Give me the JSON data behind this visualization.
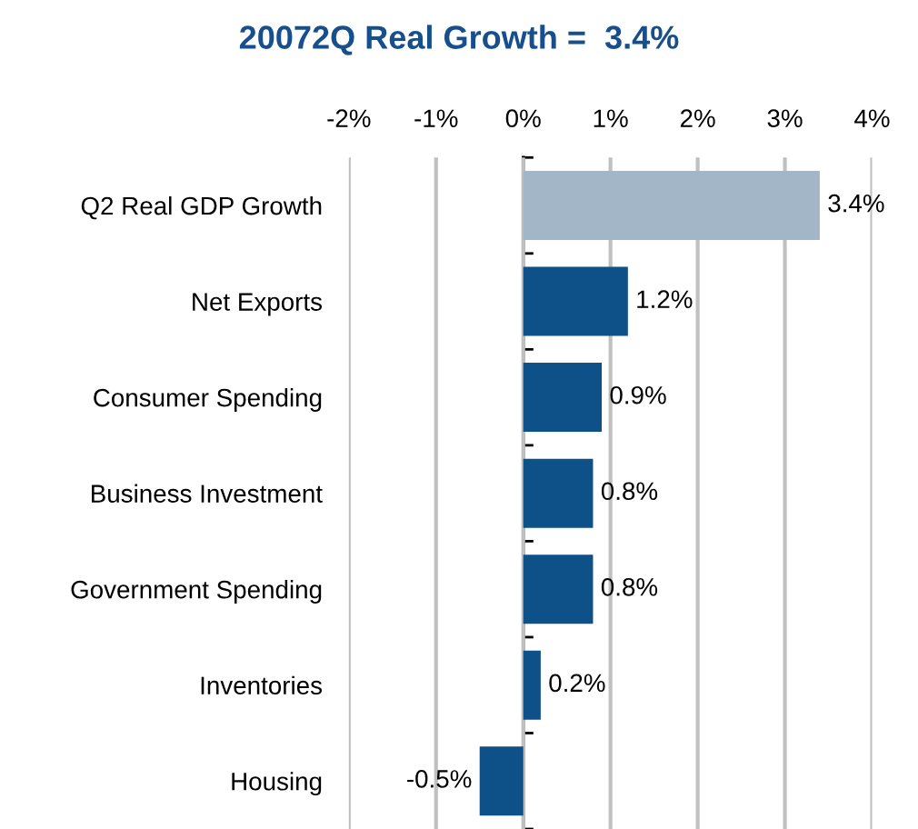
{
  "chart_data": {
    "type": "bar",
    "orientation": "horizontal",
    "title": "20072Q Real Growth =  3.4%",
    "categories": [
      "Q2 Real GDP Growth",
      "Net Exports",
      "Consumer Spending",
      "Business Investment",
      "Government Spending",
      "Inventories",
      "Housing"
    ],
    "values": [
      3.4,
      1.2,
      0.9,
      0.8,
      0.8,
      0.2,
      -0.5
    ],
    "colors": [
      "#a3b6c8",
      "#0e5088",
      "#0e5088",
      "#0e5088",
      "#0e5088",
      "#0e5088",
      "#0e5088"
    ],
    "value_labels": [
      "3.4%",
      "1.2%",
      "0.9%",
      "0.8%",
      "0.8%",
      "0.2%",
      "-0.5%"
    ],
    "xlim": [
      -2,
      4
    ],
    "xticks": [
      {
        "value": -2,
        "label": "-2%"
      },
      {
        "value": -1,
        "label": "-1%"
      },
      {
        "value": 0,
        "label": "0%"
      },
      {
        "value": 1,
        "label": "1%"
      },
      {
        "value": 2,
        "label": "2%"
      },
      {
        "value": 3,
        "label": "3%"
      },
      {
        "value": 4,
        "label": "4%"
      }
    ],
    "grid": "x"
  }
}
